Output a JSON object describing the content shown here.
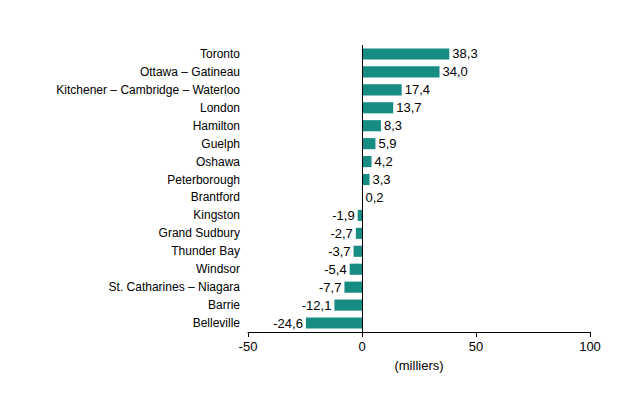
{
  "chart_data": {
    "type": "bar",
    "orientation": "horizontal",
    "categories": [
      "Toronto",
      "Ottawa – Gatineau",
      "Kitchener – Cambridge – Waterloo",
      "London",
      "Hamilton",
      "Guelph",
      "Oshawa",
      "Peterborough",
      "Brantford",
      "Kingston",
      "Grand Sudbury",
      "Thunder Bay",
      "Windsor",
      "St. Catharines – Niagara",
      "Barrie",
      "Belleville"
    ],
    "values": [
      38.3,
      34.0,
      17.4,
      13.7,
      8.3,
      5.9,
      4.2,
      3.3,
      0.2,
      -1.9,
      -2.7,
      -3.7,
      -5.4,
      -7.7,
      -12.1,
      -24.6
    ],
    "value_labels": [
      "38,3",
      "34,0",
      "17,4",
      "13,7",
      "8,3",
      "5,9",
      "4,2",
      "3,3",
      "0,2",
      "-1,9",
      "-2,7",
      "-3,7",
      "-5,4",
      "-7,7",
      "-12,1",
      "-24,6"
    ],
    "color": "#168c82",
    "xlabel": "(milliers)",
    "xlim": [
      -50,
      100
    ],
    "xticks": [
      -50,
      0,
      50,
      100
    ],
    "data_labels": true,
    "grid": false
  }
}
